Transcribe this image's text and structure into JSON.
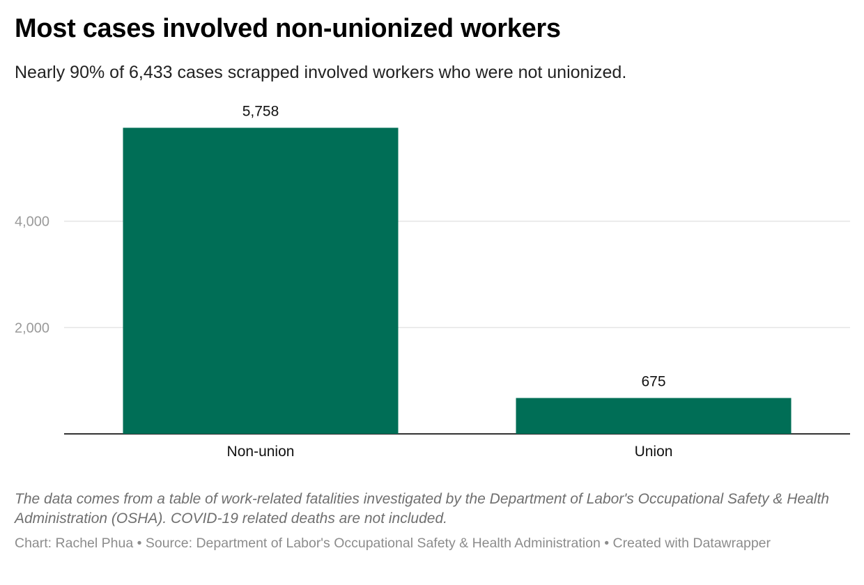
{
  "title": "Most cases involved non-unionized workers",
  "subtitle": "Nearly 90% of 6,433 cases scrapped involved workers who were not unionized.",
  "notes": "The data comes from a table of work-related fatalities investigated by the Department of Labor's Occupational Safety & Health Administration (OSHA). COVID-19 related deaths are not included.",
  "byline": "Chart: Rachel Phua • Source: Department of Labor's Occupational Safety & Health Administration • Created with Datawrapper",
  "colors": {
    "bar": "#006e56",
    "grid": "#e5e5e5",
    "axis": "#333333"
  },
  "chart_data": {
    "type": "bar",
    "categories": [
      "Non-union",
      "Union"
    ],
    "values": [
      5758,
      675
    ],
    "value_labels": [
      "5,758",
      "675"
    ],
    "yticks": [
      2000,
      4000
    ],
    "ytick_labels": [
      "2,000",
      "4,000"
    ],
    "ylim": [
      0,
      6000
    ],
    "grid": true,
    "legend": "none"
  }
}
